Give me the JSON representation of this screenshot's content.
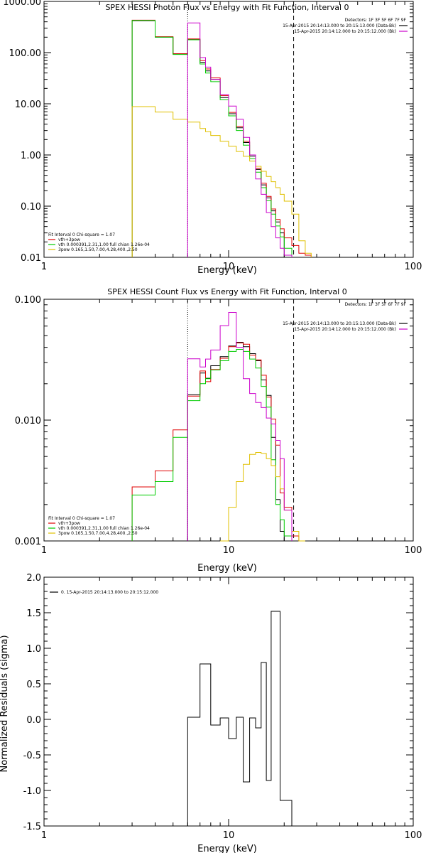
{
  "chart_data": [
    {
      "type": "line",
      "title": "SPEX HESSI Photon Flux vs Energy with Fit Function, Interval 0",
      "xlabel": "Energy (keV)",
      "ylabel": "",
      "x_scale": "log",
      "y_scale": "log",
      "xlim": [
        1,
        100
      ],
      "ylim": [
        0.01,
        1000
      ],
      "x_ticks": [
        {
          "v": 1,
          "label": "1"
        },
        {
          "v": 10,
          "label": "10"
        },
        {
          "v": 100,
          "label": "100"
        }
      ],
      "y_ticks": [
        {
          "v": 0.01,
          "label": "0.01"
        },
        {
          "v": 0.1,
          "label": "0.10"
        },
        {
          "v": 1,
          "label": "1.00"
        },
        {
          "v": 10,
          "label": "10.00"
        },
        {
          "v": 100,
          "label": "100.00"
        },
        {
          "v": 1000,
          "label": "1000.00"
        }
      ],
      "ref_lines": [
        {
          "x": 6,
          "style": "dotted"
        },
        {
          "x": 22.5,
          "style": "dashed"
        }
      ],
      "detectors_text": "Detectors: 1F 3F 5F 6F 7F 9F",
      "legend_right": [
        {
          "text": "15-Apr-2015 20:14:13.000 to 20:15:13.000 (Data-Bk)",
          "color": "#000000"
        },
        {
          "text": "15-Apr-2015 20:14:12.000 to 20:15:12.000 (Bk)",
          "color": "#cc00cc"
        }
      ],
      "legend_left": {
        "header": "Fit Interval 0   Chi-square = 1.07",
        "items": [
          {
            "text": "vth+3pow",
            "color": "#e00000"
          },
          {
            "text": "vth 0.000391,2.31,1.00   full chian 1.26e-04",
            "color": "#00cc00"
          },
          {
            "text": "3pow 0.165,1.50,7.00,4.28,400.,2.50",
            "color": "#e0c000"
          }
        ]
      },
      "edges": [
        3,
        4,
        5,
        6,
        7,
        7.5,
        8,
        9,
        10,
        11,
        12,
        13,
        14,
        15,
        16,
        17,
        18,
        19,
        20,
        22,
        24,
        26,
        28
      ],
      "series": [
        {
          "color": "#000000",
          "values": [
            420,
            200,
            95,
            180,
            65,
            44,
            30,
            13.2,
            6.4,
            3.4,
            1.75,
            0.95,
            0.52,
            0.26,
            0.145,
            0.081,
            0.049,
            0.03,
            null,
            null,
            null,
            null
          ]
        },
        {
          "color": "#e00000",
          "values": [
            430,
            205,
            95,
            185,
            70,
            48,
            32,
            14.5,
            6.8,
            3.6,
            1.85,
            1.0,
            0.55,
            0.28,
            0.155,
            0.088,
            0.055,
            0.036,
            0.024,
            0.017,
            0.012,
            0.011
          ]
        },
        {
          "color": "#00cc00",
          "values": [
            425,
            200,
            92,
            178,
            60,
            40,
            27,
            12.0,
            5.8,
            3.0,
            1.55,
            0.85,
            0.46,
            0.23,
            0.128,
            0.07,
            0.041,
            0.025,
            0.015,
            null,
            null,
            null
          ]
        },
        {
          "color": "#e0c000",
          "values": [
            8.8,
            6.9,
            5.0,
            4.4,
            3.3,
            2.85,
            2.4,
            1.85,
            1.48,
            1.17,
            0.94,
            0.76,
            0.6,
            0.48,
            0.38,
            0.3,
            0.23,
            0.17,
            0.125,
            0.07,
            0.021,
            0.012
          ]
        },
        {
          "color": "#cc00cc",
          "values": [
            null,
            null,
            null,
            380,
            80,
            52,
            30,
            15,
            9,
            5,
            2.2,
            1.0,
            0.34,
            0.17,
            0.075,
            0.04,
            0.024,
            0.015,
            0.011,
            null,
            null,
            null
          ]
        }
      ]
    },
    {
      "type": "line",
      "title": "SPEX HESSI Count Flux vs Energy with Fit Function, Interval 0",
      "xlabel": "Energy (keV)",
      "ylabel": "",
      "x_scale": "log",
      "y_scale": "log",
      "xlim": [
        1,
        100
      ],
      "ylim": [
        0.001,
        0.1
      ],
      "x_ticks": [
        {
          "v": 1,
          "label": "1"
        },
        {
          "v": 10,
          "label": "10"
        },
        {
          "v": 100,
          "label": "100"
        }
      ],
      "y_ticks": [
        {
          "v": 0.001,
          "label": "0.001"
        },
        {
          "v": 0.01,
          "label": "0.010"
        },
        {
          "v": 0.1,
          "label": "0.100"
        }
      ],
      "ref_lines": [
        {
          "x": 6,
          "style": "dotted"
        },
        {
          "x": 22.5,
          "style": "dashed"
        }
      ],
      "detectors_text": "Detectors: 1F 3F 5F 6F 7F 9F",
      "legend_right": [
        {
          "text": "15-Apr-2015 20:14:13.000 to 20:15:13.000 (Data-Bk)",
          "color": "#000000"
        },
        {
          "text": "15-Apr-2015 20:14:12.000 to 20:15:12.000 (Bk)",
          "color": "#cc00cc"
        }
      ],
      "legend_left": {
        "header": "Fit Interval 0   Chi-square = 1.07",
        "items": [
          {
            "text": "vth+3pow",
            "color": "#e00000"
          },
          {
            "text": "vth 0.000391,2.31,1.00   full chian 1.26e-04",
            "color": "#00cc00"
          },
          {
            "text": "3pow 0.165,1.50,7.00,4.28,400.,2.50",
            "color": "#e0c000"
          }
        ]
      },
      "edges": [
        3,
        4,
        5,
        6,
        7,
        7.5,
        8,
        9,
        10,
        11,
        12,
        13,
        14,
        15,
        16,
        17,
        18,
        19,
        20,
        22,
        24,
        26,
        28
      ],
      "series": [
        {
          "color": "#000000",
          "values": [
            null,
            null,
            null,
            0.0162,
            0.0245,
            0.0222,
            0.0282,
            0.0335,
            0.041,
            0.044,
            0.0405,
            0.0355,
            0.031,
            0.0215,
            0.016,
            0.0072,
            0.0022,
            0.0012,
            null,
            null,
            null,
            null
          ]
        },
        {
          "color": "#e00000",
          "values": [
            0.0028,
            0.0038,
            0.0083,
            0.0158,
            0.0255,
            0.0208,
            0.0262,
            0.0325,
            0.0405,
            0.0435,
            0.0425,
            0.0345,
            0.0315,
            0.0235,
            0.0155,
            0.0102,
            0.0062,
            0.0025,
            0.0019,
            0.0011,
            null,
            null
          ]
        },
        {
          "color": "#00cc00",
          "values": [
            0.0024,
            0.0031,
            0.0072,
            0.0145,
            0.02,
            0.022,
            0.026,
            0.031,
            0.037,
            0.0385,
            0.037,
            0.032,
            0.027,
            0.019,
            0.0128,
            0.0047,
            0.002,
            0.0015,
            0.0011,
            null,
            null,
            null
          ]
        },
        {
          "color": "#e0c000",
          "values": [
            null,
            null,
            null,
            null,
            null,
            null,
            null,
            0.001,
            0.0019,
            0.0031,
            0.0043,
            0.0052,
            0.0054,
            0.0053,
            0.0048,
            0.0042,
            0.0034,
            0.0027,
            0.0018,
            0.0012,
            0.001,
            null
          ]
        },
        {
          "color": "#cc00cc",
          "values": [
            null,
            null,
            null,
            0.0322,
            0.0275,
            0.032,
            0.038,
            0.0605,
            0.0778,
            0.04,
            0.022,
            0.0166,
            0.014,
            0.0127,
            0.0104,
            0.0093,
            0.0068,
            0.0048,
            0.0018,
            null,
            null,
            null
          ]
        }
      ]
    },
    {
      "type": "line",
      "title": "",
      "xlabel": "Energy (keV)",
      "ylabel": "Normalized Residuals (sigma)",
      "x_scale": "log",
      "y_scale": "linear",
      "xlim": [
        1,
        100
      ],
      "ylim": [
        -1.5,
        2.0
      ],
      "x_ticks": [
        {
          "v": 1,
          "label": "1"
        },
        {
          "v": 10,
          "label": "10"
        },
        {
          "v": 100,
          "label": "100"
        }
      ],
      "y_ticks": [
        {
          "v": -1.5,
          "label": "-1.5"
        },
        {
          "v": -1.0,
          "label": "-1.0"
        },
        {
          "v": -0.5,
          "label": "-0.5"
        },
        {
          "v": 0.0,
          "label": "0.0"
        },
        {
          "v": 0.5,
          "label": "0.5"
        },
        {
          "v": 1.0,
          "label": "1.0"
        },
        {
          "v": 1.5,
          "label": "1.5"
        },
        {
          "v": 2.0,
          "label": "2.0"
        }
      ],
      "legend_left_top": "0. 15-Apr-2015 20:14:13.000 to 20:15:12.000",
      "edges": [
        6,
        7,
        8,
        9,
        10,
        11,
        12,
        13,
        14,
        15,
        16,
        17,
        18,
        19,
        20,
        22
      ],
      "series": [
        {
          "color": "#000000",
          "values": [
            0.03,
            0.78,
            -0.08,
            0.02,
            -0.27,
            0.03,
            -0.88,
            0.02,
            -0.12,
            0.8,
            -0.86,
            1.52,
            1.52,
            -1.14,
            -1.14
          ]
        }
      ]
    }
  ]
}
